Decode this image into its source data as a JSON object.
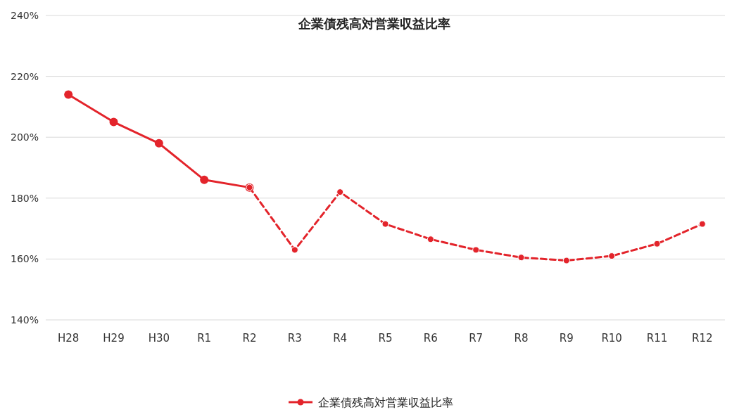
{
  "chart_data": {
    "type": "line",
    "title": "企業債残高対営業収益比率",
    "categories": [
      "H28",
      "H29",
      "H30",
      "R1",
      "R2",
      "R3",
      "R4",
      "R5",
      "R6",
      "R7",
      "R8",
      "R9",
      "R10",
      "R11",
      "R12"
    ],
    "series": [
      {
        "name": "企業債残高対営業収益比率",
        "color": "#e3242b",
        "line_style": "solid",
        "values": [
          214,
          205,
          198,
          186,
          183.5,
          null,
          null,
          null,
          null,
          null,
          null,
          null,
          null,
          null,
          null
        ]
      },
      {
        "color": "#e3242b",
        "line_style": "dashed",
        "values": [
          null,
          null,
          null,
          null,
          183.5,
          163,
          182,
          171.5,
          166.5,
          163,
          160.5,
          159.5,
          161,
          165,
          171.5
        ]
      }
    ],
    "ylim": [
      140,
      240
    ],
    "yticks": [
      {
        "value": 140,
        "label": "140%"
      },
      {
        "value": 160,
        "label": "160%"
      },
      {
        "value": 180,
        "label": "180%"
      },
      {
        "value": 200,
        "label": "200%"
      },
      {
        "value": 220,
        "label": "220%"
      },
      {
        "value": 240,
        "label": "240%"
      }
    ],
    "grid": "y",
    "legend": "bottom",
    "marker": "circle"
  }
}
